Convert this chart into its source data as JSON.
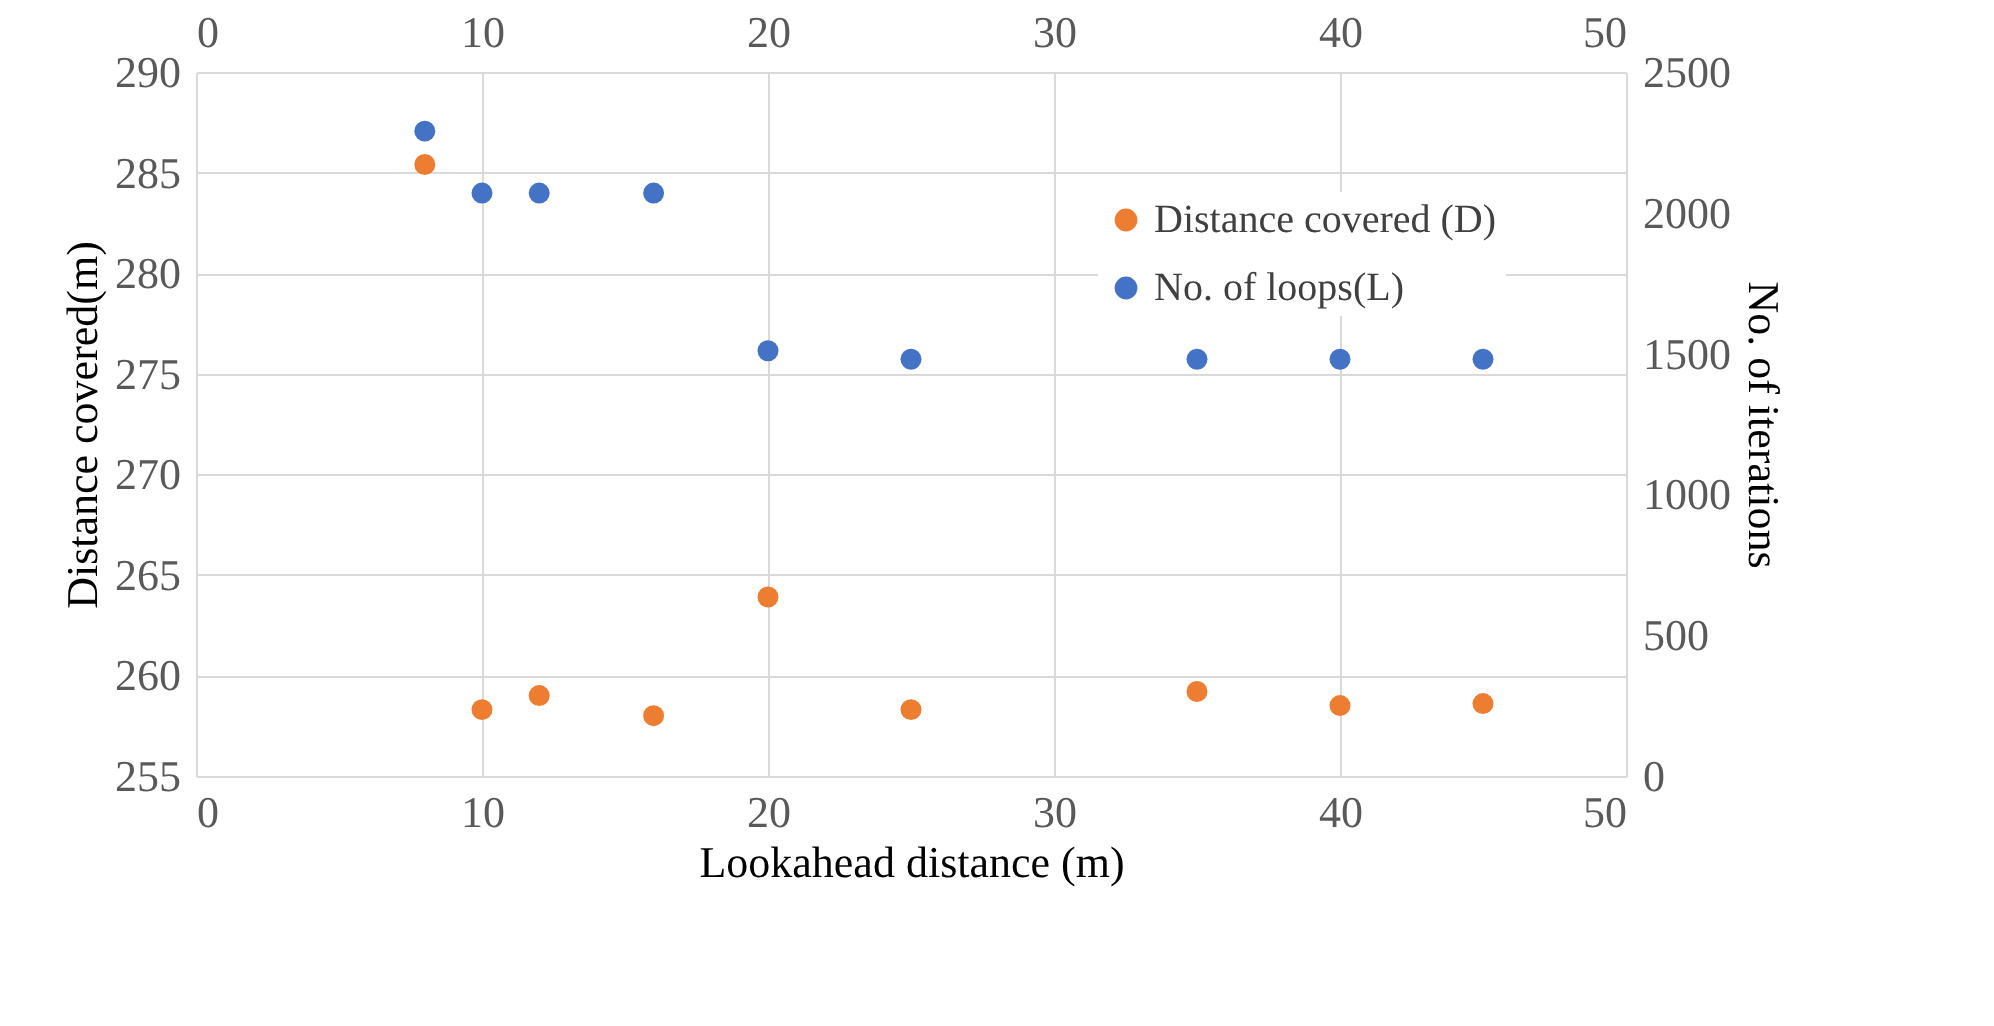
{
  "chart_data": {
    "type": "scatter",
    "xlabel": "Lookahead distance (m)",
    "ylabel": "Distance covered(m)",
    "y2label": "No. of iterations",
    "x": [
      8,
      10,
      12,
      16,
      20,
      25,
      35,
      40,
      45
    ],
    "series": [
      {
        "name": "Distance covered (D)",
        "color": "#ed7d31",
        "values": [
          285.4,
          258.3,
          259.0,
          258.0,
          263.9,
          258.3,
          259.2,
          258.5,
          258.6
        ]
      },
      {
        "name": "No. of loops(L)",
        "color": "#4472c4",
        "axis": "y2",
        "values": [
          2290,
          2070,
          2070,
          2070,
          1510,
          1480,
          1480,
          1480,
          1480
        ]
      }
    ],
    "xlim": [
      0,
      50
    ],
    "xticks": [
      0,
      10,
      20,
      30,
      40,
      50
    ],
    "x2lim": [
      0,
      50
    ],
    "x2ticks": [
      0,
      10,
      20,
      30,
      40,
      50
    ],
    "ylim": [
      255,
      290
    ],
    "yticks": [
      255,
      260,
      265,
      270,
      275,
      280,
      285,
      290
    ],
    "y2lim": [
      0,
      2500
    ],
    "y2ticks": [
      0,
      500,
      1000,
      1500,
      2000,
      2500
    ],
    "grid": true,
    "legend": "top right",
    "marker": "circle"
  }
}
